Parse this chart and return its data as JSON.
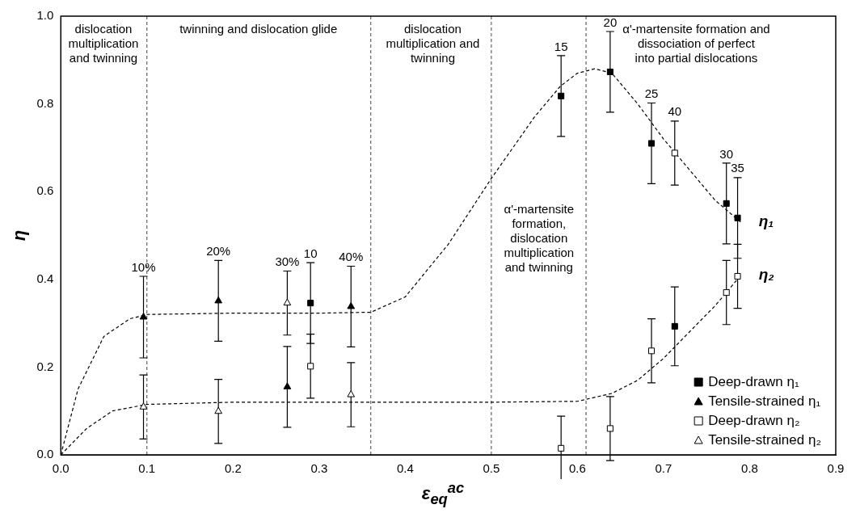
{
  "chart_data": {
    "type": "scatter",
    "xlabel": "ε$_{eq}$$^{ac}$",
    "ylabel": "η",
    "xlim": [
      0,
      0.9
    ],
    "ylim": [
      0,
      1
    ],
    "xticks": [
      {
        "value": 0,
        "label": "0.0"
      },
      {
        "value": 0.1,
        "label": "0.1"
      },
      {
        "value": 0.2,
        "label": "0.2"
      },
      {
        "value": 0.3,
        "label": "0.3"
      },
      {
        "value": 0.4,
        "label": "0.4"
      },
      {
        "value": 0.5,
        "label": "0.5"
      },
      {
        "value": 0.6,
        "label": "0.6"
      },
      {
        "value": 0.7,
        "label": "0.7"
      },
      {
        "value": 0.8,
        "label": "0.8"
      },
      {
        "value": 0.9,
        "label": "0.9"
      }
    ],
    "yticks": [
      {
        "value": 0,
        "label": "0.0"
      },
      {
        "value": 0.2,
        "label": "0.2"
      },
      {
        "value": 0.4,
        "label": "0.4"
      },
      {
        "value": 0.6,
        "label": "0.6"
      },
      {
        "value": 0.8,
        "label": "0.8"
      },
      {
        "value": 1,
        "label": "1.0"
      }
    ],
    "grid": false,
    "legend": "bottom right",
    "series": [
      {
        "name": "Deep-drawn η₁",
        "marker": "square",
        "color": "#000000",
        "x": [
          0.29,
          0.581,
          0.638,
          0.686,
          0.713,
          0.773,
          0.786
        ],
        "values": [
          0.346,
          0.818,
          0.873,
          0.71,
          0.293,
          0.573,
          0.54
        ],
        "errors": [
          0.092,
          0.092,
          0.092,
          0.092,
          0.09,
          0.092,
          0.092
        ]
      },
      {
        "name": "Tensile-strained η₁",
        "marker": "triangle",
        "color": "#000000",
        "x": [
          0.096,
          0.183,
          0.263,
          0.337
        ],
        "values": [
          0.314,
          0.351,
          0.155,
          0.338
        ],
        "errors": [
          0.093,
          0.092,
          0.092,
          0.092
        ]
      },
      {
        "name": "Deep-drawn η₂",
        "marker": "square",
        "color": "#ffffff",
        "x": [
          0.29,
          0.581,
          0.638,
          0.686,
          0.713,
          0.773,
          0.786
        ],
        "values": [
          0.202,
          0.015,
          0.06,
          0.237,
          0.688,
          0.37,
          0.407
        ],
        "errors": [
          0.073,
          0.073,
          0.073,
          0.073,
          0.073,
          0.073,
          0.073
        ]
      },
      {
        "name": "Tensile-strained η₂",
        "marker": "triangle",
        "color": "#ffffff",
        "x": [
          0.096,
          0.183,
          0.263,
          0.337
        ],
        "values": [
          0.109,
          0.099,
          0.346,
          0.137
        ],
        "errors": [
          0.073,
          0.073,
          0.073,
          0.073
        ]
      },
      {
        "type": "line",
        "marker": "none",
        "line_style": "dashed",
        "color": "#000000",
        "x": [
          0,
          0.02,
          0.05,
          0.08,
          0.1,
          0.2,
          0.3,
          0.36,
          0.4,
          0.45,
          0.5,
          0.55,
          0.58,
          0.6,
          0.62,
          0.64,
          0.67,
          0.7,
          0.73,
          0.76,
          0.79
        ],
        "values": [
          0,
          0.15,
          0.27,
          0.31,
          0.32,
          0.323,
          0.323,
          0.325,
          0.36,
          0.48,
          0.63,
          0.77,
          0.84,
          0.87,
          0.88,
          0.87,
          0.8,
          0.72,
          0.65,
          0.58,
          0.53
        ]
      },
      {
        "type": "line",
        "marker": "none",
        "line_style": "dashed",
        "color": "#000000",
        "x": [
          0,
          0.03,
          0.06,
          0.1,
          0.2,
          0.36,
          0.5,
          0.6,
          0.64,
          0.67,
          0.7,
          0.73,
          0.76,
          0.79
        ],
        "values": [
          0,
          0.06,
          0.1,
          0.115,
          0.12,
          0.12,
          0.12,
          0.122,
          0.14,
          0.17,
          0.22,
          0.28,
          0.34,
          0.41
        ]
      }
    ],
    "ref_lines": [
      {
        "axis": "x",
        "value": 0.1,
        "line_style": "dashed"
      },
      {
        "axis": "x",
        "value": 0.36,
        "line_style": "dashed"
      },
      {
        "axis": "x",
        "value": 0.5,
        "line_style": "dashed"
      },
      {
        "axis": "x",
        "value": 0.61,
        "line_style": "dashed"
      }
    ],
    "annotations": [
      "dislocation\nmultiplication\nand twinning",
      "twinning and dislocation glide",
      "dislocation\nmultiplication and\ntwinning",
      "α'-martensite\nformation,\ndislocation\nmultiplication\nand twinning",
      "α'-martensite formation and\ndissociation of perfect\ninto partial dislocations",
      {
        "text": "η₁",
        "x": 0.79,
        "y": 0.53
      },
      {
        "text": "η₂",
        "x": 0.79,
        "y": 0.41
      },
      {
        "text": "10",
        "x": 0.29,
        "y": 0.438
      },
      {
        "text": "15",
        "x": 0.581,
        "y": 0.91
      },
      {
        "text": "20",
        "x": 0.638,
        "y": 0.965
      },
      {
        "text": "25",
        "x": 0.686,
        "y": 0.802
      },
      {
        "text": "30",
        "x": 0.773,
        "y": 0.665
      },
      {
        "text": "35",
        "x": 0.786,
        "y": 0.632
      },
      {
        "text": "10%",
        "x": 0.096,
        "y": 0.407
      },
      {
        "text": "20%",
        "x": 0.183,
        "y": 0.443
      },
      {
        "text": "40%",
        "x": 0.337,
        "y": 0.43
      },
      {
        "text": "40",
        "x": 0.713,
        "y": 0.761
      },
      {
        "text": "30%",
        "x": 0.263,
        "y": 0.419
      }
    ]
  }
}
